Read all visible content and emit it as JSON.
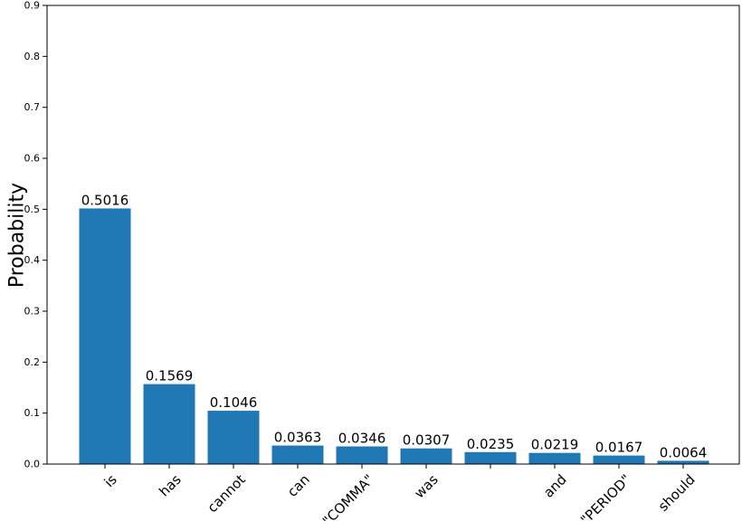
{
  "chart_data": {
    "type": "bar",
    "title": "",
    "xlabel": "",
    "ylabel": "Probability",
    "ylim": [
      0,
      0.9
    ],
    "yticks": [
      0.0,
      0.1,
      0.2,
      0.3,
      0.4,
      0.5,
      0.6,
      0.7,
      0.8,
      0.9
    ],
    "ytick_labels": [
      "0.0",
      "0.1",
      "0.2",
      "0.3",
      "0.4",
      "0.5",
      "0.6",
      "0.7",
      "0.8",
      "0.9"
    ],
    "grid": false,
    "bar_color": "#1f77b4",
    "categories": [
      "is",
      "has",
      "cannot",
      "can",
      "\"COMMA\"",
      "was",
      "",
      "and",
      "\"PERIOD\"",
      "should"
    ],
    "values": [
      0.5016,
      0.1569,
      0.1046,
      0.0363,
      0.0346,
      0.0307,
      0.0235,
      0.0219,
      0.0167,
      0.0064
    ],
    "value_labels": [
      "0.5016",
      "0.1569",
      "0.1046",
      "0.0363",
      "0.0346",
      "0.0307",
      "0.0235",
      "0.0219",
      "0.0167",
      "0.0064"
    ]
  }
}
